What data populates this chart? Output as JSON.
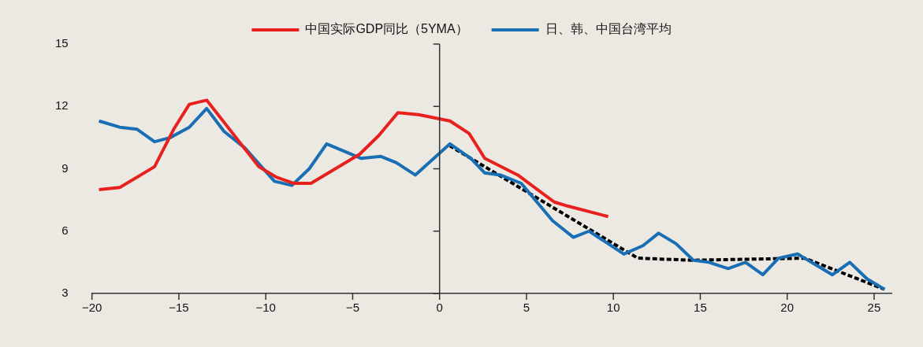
{
  "chart_data": {
    "type": "line",
    "legend": "top",
    "xlim": [
      -20,
      26
    ],
    "ylim": [
      3,
      15
    ],
    "xticks": [
      {
        "value": -20,
        "label": "−20"
      },
      {
        "value": -15,
        "label": "−15"
      },
      {
        "value": -10,
        "label": "−10"
      },
      {
        "value": -5,
        "label": "−5"
      },
      0,
      5,
      10,
      15,
      20,
      25
    ],
    "yticks": [
      3,
      6,
      9,
      12,
      15
    ],
    "series": [
      {
        "name": "中国实际GDP同比（5YMA）",
        "color": "#e8211f",
        "x": [
          -19.6,
          -18.4,
          -16.4,
          -15.3,
          -14.4,
          -13.4,
          -10.4,
          -9.4,
          -8.4,
          -7.4,
          -4.6,
          -3.5,
          -2.4,
          -1.2,
          0.6,
          1.7,
          2.6,
          4.5,
          6.6,
          7.4,
          9.7
        ],
        "values": [
          8.0,
          8.1,
          9.1,
          10.9,
          12.1,
          12.3,
          9.1,
          8.6,
          8.3,
          8.3,
          9.7,
          10.6,
          11.7,
          11.6,
          11.3,
          10.7,
          9.5,
          8.7,
          7.4,
          7.2,
          6.7
        ]
      },
      {
        "name": "日、韩、中国台湾平均",
        "color": "#1a6fb4",
        "x": [
          -19.6,
          -18.4,
          -17.4,
          -16.4,
          -15.5,
          -14.4,
          -13.4,
          -12.4,
          -11.2,
          -9.5,
          -8.5,
          -7.5,
          -6.5,
          -4.5,
          -3.4,
          -2.5,
          -1.4,
          0.6,
          1.8,
          2.6,
          3.5,
          4.7,
          6.5,
          7.7,
          8.6,
          10.6,
          11.7,
          12.6,
          13.6,
          14.6,
          15.5,
          16.6,
          17.6,
          18.6,
          19.5,
          20.6,
          21.6,
          22.6,
          23.6,
          24.6,
          25.6
        ],
        "values": [
          11.3,
          11.0,
          10.9,
          10.3,
          10.5,
          11.0,
          11.9,
          10.8,
          10.0,
          8.4,
          8.2,
          9.0,
          10.2,
          9.5,
          9.6,
          9.3,
          8.7,
          10.2,
          9.5,
          8.8,
          8.7,
          8.3,
          6.5,
          5.7,
          6.0,
          4.9,
          5.3,
          5.9,
          5.4,
          4.6,
          4.5,
          4.2,
          4.5,
          3.9,
          4.7,
          4.9,
          4.4,
          3.9,
          4.5,
          3.7,
          3.2
        ]
      },
      {
        "color": "#000000",
        "line_style": "dashed",
        "x": [
          0.6,
          11.4,
          14.5,
          21.0,
          25.6
        ],
        "values": [
          10.1,
          4.7,
          4.6,
          4.7,
          3.2
        ]
      }
    ]
  }
}
